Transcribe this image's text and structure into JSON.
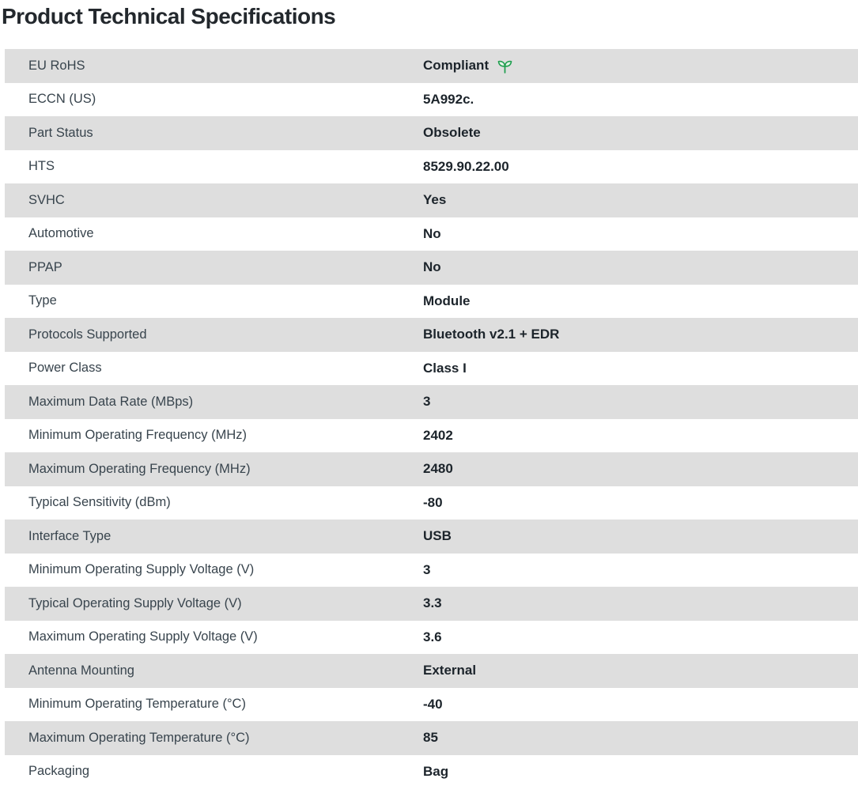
{
  "page": {
    "title": "Product Technical Specifications"
  },
  "colors": {
    "stripe_background": "#dedede",
    "label_text": "#38444d",
    "value_text": "#1c242b",
    "title_text": "#23282d",
    "compliance_green": "#1e9e4e"
  },
  "icons": {
    "compliance": "leaf-icon"
  },
  "spec_table": {
    "rows": [
      {
        "label": "EU RoHS",
        "value": "Compliant",
        "icon": "leaf-icon"
      },
      {
        "label": "ECCN (US)",
        "value": "5A992c."
      },
      {
        "label": "Part Status",
        "value": "Obsolete"
      },
      {
        "label": "HTS",
        "value": "8529.90.22.00"
      },
      {
        "label": "SVHC",
        "value": "Yes"
      },
      {
        "label": "Automotive",
        "value": "No"
      },
      {
        "label": "PPAP",
        "value": "No"
      },
      {
        "label": "Type",
        "value": "Module"
      },
      {
        "label": "Protocols Supported",
        "value": "Bluetooth v2.1 + EDR"
      },
      {
        "label": "Power Class",
        "value": "Class I"
      },
      {
        "label": "Maximum Data Rate (MBps)",
        "value": "3"
      },
      {
        "label": "Minimum Operating Frequency (MHz)",
        "value": "2402"
      },
      {
        "label": "Maximum Operating Frequency (MHz)",
        "value": "2480"
      },
      {
        "label": "Typical Sensitivity (dBm)",
        "value": "-80"
      },
      {
        "label": "Interface Type",
        "value": "USB"
      },
      {
        "label": "Minimum Operating Supply Voltage (V)",
        "value": "3"
      },
      {
        "label": "Typical Operating Supply Voltage (V)",
        "value": "3.3"
      },
      {
        "label": "Maximum Operating Supply Voltage (V)",
        "value": "3.6"
      },
      {
        "label": "Antenna Mounting",
        "value": "External"
      },
      {
        "label": "Minimum Operating Temperature (°C)",
        "value": "-40"
      },
      {
        "label": "Maximum Operating Temperature (°C)",
        "value": "85"
      },
      {
        "label": "Packaging",
        "value": "Bag"
      }
    ]
  }
}
